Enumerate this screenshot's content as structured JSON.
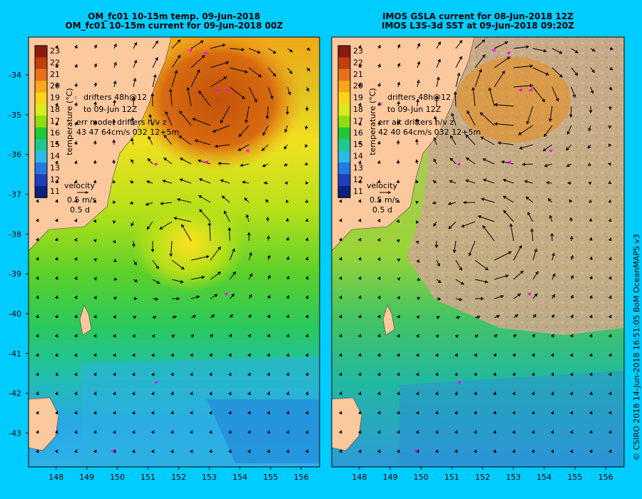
{
  "titles": {
    "left_line1": "OM_fc01 10-15m temp. 09-Jun-2018",
    "left_line2": "OM_fc01 10-15m current for 09-Jun-2018 00Z",
    "right_line1": "IMOS GSLA current for 08-Jun-2018 12Z",
    "right_line2": "IMOS L3S-3d SST at 09-Jun-2018 09:20Z"
  },
  "axes": {
    "lon_ticks": [
      "148",
      "149",
      "150",
      "151",
      "152",
      "153",
      "154",
      "155",
      "156"
    ],
    "lat_ticks": [
      "-34",
      "-35",
      "-36",
      "-37",
      "-38",
      "-39",
      "-40",
      "-41",
      "-42",
      "-43"
    ],
    "lon_range": [
      147.1,
      156.6
    ],
    "lat_range": [
      -43.85,
      -33.05
    ]
  },
  "colorbar": {
    "label": "temperature (°C)",
    "ticks": [
      "23",
      "22",
      "21",
      "20",
      "19",
      "18",
      "17",
      "16",
      "15",
      "14",
      "13",
      "12",
      "11"
    ],
    "colors": [
      "#8b1a10",
      "#c0400a",
      "#e8701a",
      "#f7a818",
      "#ffd21a",
      "#d8ea20",
      "#8edc12",
      "#22c838",
      "#1ec890",
      "#2cb8e8",
      "#2478e0",
      "#1f3fbe",
      "#102080"
    ]
  },
  "legend_left": {
    "drifters": "drifters 48h@12",
    "drifters_date": "to 09-Jun 12Z",
    "err_line1": "err model drifters h/v z",
    "err_line2": "43 47 64cm/s 032 12+5m",
    "velocity": "velocity",
    "speed": "0.5 m/s",
    "duration": "0.5 d"
  },
  "legend_right": {
    "drifters": "drifters 48h@12",
    "drifters_date": "to 09-Jun 12Z",
    "err_line1": "err alt drifters h/v z",
    "err_line2": "42 40 64cm/s 032 12+5m",
    "velocity": "velocity",
    "speed": "0.5 m/s",
    "duration": "0.5 d"
  },
  "credit": "© CSIRO 2018   14-Jun-2018 16:51:05 BoM OceanMAPS v3",
  "colors": {
    "background": "#00ccff",
    "land": "#fcc89e",
    "cloud": "#c8aa8a",
    "drifter": "#ff00ff"
  }
}
